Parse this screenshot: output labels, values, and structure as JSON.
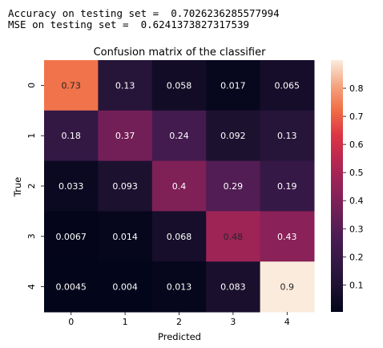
{
  "output": {
    "line1": "Accuracy on testing set =  0.7026236285577994",
    "line2": "MSE on testing set =  0.6241373827317539"
  },
  "chart_data": {
    "type": "heatmap",
    "title": "Confusion matrix of the classifier",
    "xlabel": "Predicted",
    "ylabel": "True",
    "x_categories": [
      "0",
      "1",
      "2",
      "3",
      "4"
    ],
    "y_categories": [
      "0",
      "1",
      "2",
      "3",
      "4"
    ],
    "values": [
      [
        0.73,
        0.13,
        0.058,
        0.017,
        0.065
      ],
      [
        0.18,
        0.37,
        0.24,
        0.092,
        0.13
      ],
      [
        0.033,
        0.093,
        0.4,
        0.29,
        0.19
      ],
      [
        0.0067,
        0.014,
        0.068,
        0.48,
        0.43
      ],
      [
        0.0045,
        0.004,
        0.013,
        0.083,
        0.9
      ]
    ],
    "cell_labels": [
      [
        "0.73",
        "0.13",
        "0.058",
        "0.017",
        "0.065"
      ],
      [
        "0.18",
        "0.37",
        "0.24",
        "0.092",
        "0.13"
      ],
      [
        "0.033",
        "0.093",
        "0.4",
        "0.29",
        "0.19"
      ],
      [
        "0.0067",
        "0.014",
        "0.068",
        "0.48",
        "0.43"
      ],
      [
        "0.0045",
        "0.004",
        "0.013",
        "0.083",
        "0.9"
      ]
    ],
    "colorscale": "rocket",
    "vmin": 0.004,
    "vmax": 0.9,
    "colorbar_ticks": [
      0.1,
      0.2,
      0.3,
      0.4,
      0.5,
      0.6,
      0.7,
      0.8
    ],
    "colorbar_tick_labels": [
      "0.1",
      "0.2",
      "0.3",
      "0.4",
      "0.5",
      "0.6",
      "0.7",
      "0.8"
    ]
  }
}
